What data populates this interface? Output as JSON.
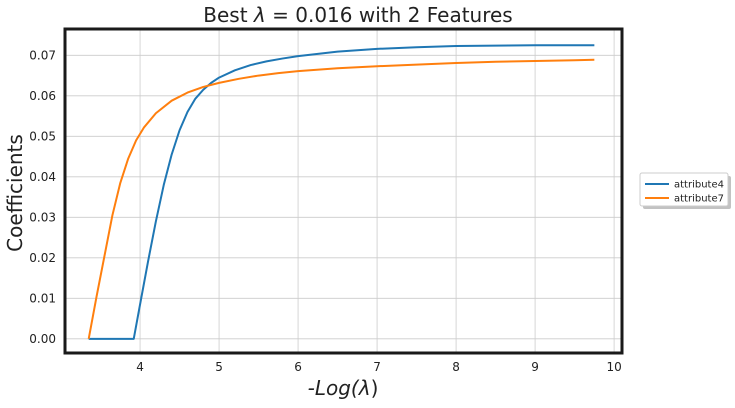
{
  "chart_data": {
    "type": "line",
    "title_prefix": "Best ",
    "title_lambda": "λ",
    "title_suffix": " = 0.016 with 2 Features",
    "xlabel_prefix": "-Log(",
    "xlabel_lambda": "λ",
    "xlabel_suffix": ")",
    "ylabel": "Coefficients",
    "xlim": [
      3.05,
      10.1
    ],
    "ylim": [
      -0.0035,
      0.0765
    ],
    "xticks": [
      4,
      5,
      6,
      7,
      8,
      9,
      10
    ],
    "yticks": [
      0.0,
      0.01,
      0.02,
      0.03,
      0.04,
      0.05,
      0.06,
      0.07
    ],
    "ytick_labels": [
      "0.00",
      "0.01",
      "0.02",
      "0.03",
      "0.04",
      "0.05",
      "0.06",
      "0.07"
    ],
    "grid": true,
    "legend_position": "right-outside",
    "series": [
      {
        "name": "attribute4",
        "color": "#1f77b4",
        "x": [
          3.35,
          3.92,
          4.0,
          4.1,
          4.2,
          4.3,
          4.4,
          4.5,
          4.6,
          4.7,
          4.8,
          4.9,
          5.0,
          5.2,
          5.4,
          5.6,
          5.8,
          6.0,
          6.5,
          7.0,
          7.5,
          8.0,
          8.5,
          9.0,
          9.5,
          9.75
        ],
        "y": [
          0.0,
          0.0,
          0.0085,
          0.019,
          0.029,
          0.038,
          0.0455,
          0.0515,
          0.056,
          0.0593,
          0.0615,
          0.0632,
          0.0645,
          0.0663,
          0.0676,
          0.0685,
          0.0692,
          0.0698,
          0.0709,
          0.0716,
          0.072,
          0.0723,
          0.0724,
          0.0725,
          0.0725,
          0.0725
        ]
      },
      {
        "name": "attribute7",
        "color": "#ff7f0e",
        "x": [
          3.35,
          3.45,
          3.55,
          3.65,
          3.75,
          3.85,
          3.95,
          4.05,
          4.2,
          4.4,
          4.6,
          4.8,
          5.0,
          5.25,
          5.5,
          5.75,
          6.0,
          6.5,
          7.0,
          7.5,
          8.0,
          8.5,
          9.0,
          9.5,
          9.75
        ],
        "y": [
          0.0,
          0.0105,
          0.0205,
          0.0305,
          0.0385,
          0.0445,
          0.049,
          0.0522,
          0.0557,
          0.0588,
          0.0608,
          0.0622,
          0.0632,
          0.0642,
          0.065,
          0.0656,
          0.0661,
          0.0668,
          0.0673,
          0.0677,
          0.0681,
          0.0684,
          0.0686,
          0.0688,
          0.0689
        ]
      }
    ]
  }
}
